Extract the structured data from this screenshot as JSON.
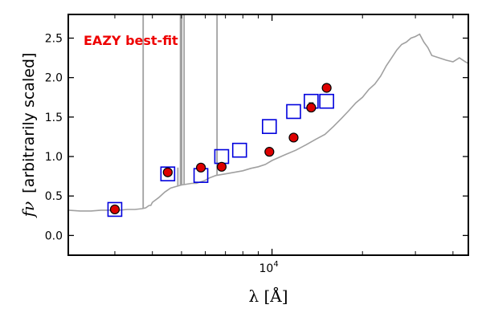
{
  "chart_data": {
    "type": "scatter",
    "title": "",
    "xlabel": "λ [Å]",
    "ylabel": "f_ν [arbitrarily scaled]",
    "ylabel_symbol": "fν",
    "ylabel_text": "[arbitrarily scaled]",
    "xscale": "log",
    "xlim": [
      2100,
      45000
    ],
    "ylim": [
      -0.25,
      2.8
    ],
    "grid": false,
    "annotation": {
      "text": "EAZY best-fit",
      "color": "#ee0000",
      "position": "top-left"
    },
    "x_tick_labels": [
      {
        "value": 10000,
        "base": "10",
        "exp": "4"
      }
    ],
    "y_ticks": [
      0.0,
      0.5,
      1.0,
      1.5,
      2.0,
      2.5
    ],
    "y_tick_labels": [
      "0.0",
      "0.5",
      "1.0",
      "1.5",
      "2.0",
      "2.5"
    ],
    "x_major_ticks": [
      10000
    ],
    "x_minor_ticks": [
      3000,
      4000,
      5000,
      6000,
      7000,
      8000,
      9000,
      20000,
      30000,
      40000
    ],
    "colors": {
      "template": "#a0a0a0",
      "observed": "#dd0000",
      "model": "#0000dd"
    },
    "series": [
      {
        "kind": "template-line",
        "x": [
          2100,
          2300,
          2500,
          2700,
          2900,
          3100,
          3300,
          3500,
          3700,
          3800,
          3900,
          3950,
          4000,
          4100,
          4200,
          4400,
          4600,
          4800,
          5000,
          5200,
          5400,
          5600,
          5800,
          6000,
          6200,
          6500,
          7000,
          7500,
          8000,
          8500,
          9000,
          9500,
          10000,
          11000,
          12000,
          13000,
          14000,
          15000,
          16000,
          17000,
          18000,
          19000,
          20000,
          21000,
          22000,
          23000,
          24000,
          25000,
          26000,
          27000,
          28000,
          29000,
          30000,
          31000,
          32000,
          33000,
          34000,
          36000,
          38000,
          40000,
          42000,
          44000,
          45000
        ],
        "y": [
          0.32,
          0.31,
          0.31,
          0.32,
          0.32,
          0.32,
          0.33,
          0.33,
          0.34,
          0.35,
          0.38,
          0.38,
          0.42,
          0.45,
          0.48,
          0.55,
          0.6,
          0.62,
          0.64,
          0.65,
          0.66,
          0.66,
          0.68,
          0.7,
          0.73,
          0.76,
          0.78,
          0.8,
          0.82,
          0.85,
          0.87,
          0.9,
          0.95,
          1.02,
          1.08,
          1.15,
          1.22,
          1.28,
          1.38,
          1.48,
          1.58,
          1.68,
          1.75,
          1.85,
          1.92,
          2.02,
          2.15,
          2.25,
          2.35,
          2.42,
          2.45,
          2.5,
          2.52,
          2.55,
          2.45,
          2.38,
          2.28,
          2.25,
          2.22,
          2.2,
          2.25,
          2.2,
          2.18
        ]
      },
      {
        "kind": "template-emission-lines",
        "lines": [
          {
            "x": 3727,
            "y": 2.8
          },
          {
            "x": 4861,
            "y": 0.86
          },
          {
            "x": 4959,
            "y": 2.8
          },
          {
            "x": 5007,
            "y": 2.8
          },
          {
            "x": 5100,
            "y": 2.8
          },
          {
            "x": 6563,
            "y": 2.8
          }
        ]
      },
      {
        "kind": "model-photometry",
        "marker": "square",
        "x": [
          3000,
          4500,
          5800,
          6800,
          7800,
          9800,
          11800,
          13500,
          15200
        ],
        "y": [
          0.33,
          0.78,
          0.76,
          1.0,
          1.08,
          1.38,
          1.57,
          1.7,
          1.7
        ]
      },
      {
        "kind": "observed-photometry",
        "marker": "circle",
        "x": [
          3000,
          4500,
          5800,
          6800,
          9800,
          11800,
          13500,
          15200
        ],
        "y": [
          0.33,
          0.8,
          0.86,
          0.87,
          1.06,
          1.24,
          1.62,
          1.87
        ],
        "yerr": [
          0.02,
          0.02,
          0.02,
          0.02,
          0.02,
          0.02,
          0.06,
          0.02
        ]
      }
    ]
  }
}
